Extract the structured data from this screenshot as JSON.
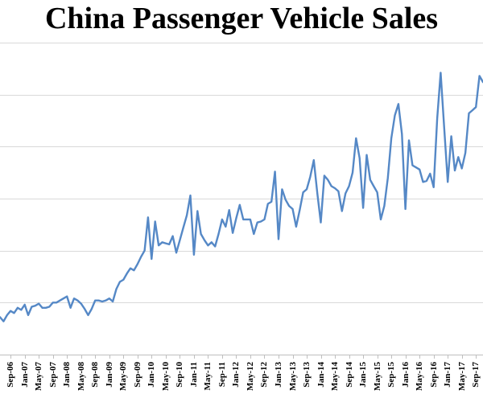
{
  "title": "China Passenger Vehicle Sales",
  "chart_data": {
    "type": "line",
    "title": "China Passenger Vehicle Sales",
    "xlabel": "",
    "ylabel": "",
    "legend": "none",
    "grid": "horizontal",
    "y_axis_labels_visible": false,
    "y_units": "millions of vehicles per month (estimated from unlabeled gridlines; one gridline interval = 0.5)",
    "ylim": [
      0,
      3.0
    ],
    "gridline_interval": 0.5,
    "line_color": "#5588C6",
    "gridline_color": "#D9D9D9",
    "axis_color": "#BFBFBF",
    "x": [
      "Jun-06",
      "Jul-06",
      "Aug-06",
      "Sep-06",
      "Oct-06",
      "Nov-06",
      "Dec-06",
      "Jan-07",
      "Feb-07",
      "Mar-07",
      "Apr-07",
      "May-07",
      "Jun-07",
      "Jul-07",
      "Aug-07",
      "Sep-07",
      "Oct-07",
      "Nov-07",
      "Dec-07",
      "Jan-08",
      "Feb-08",
      "Mar-08",
      "Apr-08",
      "May-08",
      "Jun-08",
      "Jul-08",
      "Aug-08",
      "Sep-08",
      "Oct-08",
      "Nov-08",
      "Dec-08",
      "Jan-09",
      "Feb-09",
      "Mar-09",
      "Apr-09",
      "May-09",
      "Jun-09",
      "Jul-09",
      "Aug-09",
      "Sep-09",
      "Oct-09",
      "Nov-09",
      "Dec-09",
      "Jan-10",
      "Feb-10",
      "Mar-10",
      "Apr-10",
      "May-10",
      "Jun-10",
      "Jul-10",
      "Aug-10",
      "Sep-10",
      "Oct-10",
      "Nov-10",
      "Dec-10",
      "Jan-11",
      "Feb-11",
      "Mar-11",
      "Apr-11",
      "May-11",
      "Jun-11",
      "Jul-11",
      "Aug-11",
      "Sep-11",
      "Oct-11",
      "Nov-11",
      "Dec-11",
      "Jan-12",
      "Feb-12",
      "Mar-12",
      "Apr-12",
      "May-12",
      "Jun-12",
      "Jul-12",
      "Aug-12",
      "Sep-12",
      "Oct-12",
      "Nov-12",
      "Dec-12",
      "Jan-13",
      "Feb-13",
      "Mar-13",
      "Apr-13",
      "May-13",
      "Jun-13",
      "Jul-13",
      "Aug-13",
      "Sep-13",
      "Oct-13",
      "Nov-13",
      "Dec-13",
      "Jan-14",
      "Feb-14",
      "Mar-14",
      "Apr-14",
      "May-14",
      "Jun-14",
      "Jul-14",
      "Aug-14",
      "Sep-14",
      "Oct-14",
      "Nov-14",
      "Dec-14",
      "Jan-15",
      "Feb-15",
      "Mar-15",
      "Apr-15",
      "May-15",
      "Jun-15",
      "Jul-15",
      "Aug-15",
      "Sep-15",
      "Oct-15",
      "Nov-15",
      "Dec-15",
      "Jan-16",
      "Feb-16",
      "Mar-16",
      "Apr-16",
      "May-16",
      "Jun-16",
      "Jul-16",
      "Aug-16",
      "Sep-16",
      "Oct-16",
      "Nov-16",
      "Dec-16",
      "Jan-17",
      "Feb-17",
      "Mar-17",
      "Apr-17",
      "May-17",
      "Jun-17",
      "Jul-17",
      "Aug-17",
      "Sep-17",
      "Oct-17",
      "Nov-17"
    ],
    "values": [
      0.36,
      0.32,
      0.38,
      0.42,
      0.4,
      0.45,
      0.43,
      0.48,
      0.38,
      0.46,
      0.47,
      0.49,
      0.45,
      0.45,
      0.46,
      0.5,
      0.5,
      0.52,
      0.54,
      0.56,
      0.45,
      0.54,
      0.52,
      0.49,
      0.44,
      0.38,
      0.44,
      0.52,
      0.52,
      0.51,
      0.52,
      0.54,
      0.51,
      0.63,
      0.7,
      0.72,
      0.78,
      0.83,
      0.81,
      0.87,
      0.94,
      1.0,
      1.32,
      0.92,
      1.28,
      1.05,
      1.08,
      1.07,
      1.06,
      1.14,
      0.98,
      1.1,
      1.22,
      1.34,
      1.53,
      0.96,
      1.38,
      1.16,
      1.1,
      1.05,
      1.08,
      1.04,
      1.16,
      1.3,
      1.23,
      1.39,
      1.17,
      1.31,
      1.44,
      1.3,
      1.3,
      1.3,
      1.16,
      1.27,
      1.28,
      1.3,
      1.45,
      1.47,
      1.76,
      1.11,
      1.59,
      1.49,
      1.43,
      1.4,
      1.23,
      1.39,
      1.56,
      1.59,
      1.71,
      1.87,
      1.55,
      1.27,
      1.72,
      1.68,
      1.62,
      1.6,
      1.57,
      1.38,
      1.55,
      1.62,
      1.75,
      2.08,
      1.89,
      1.41,
      1.92,
      1.68,
      1.62,
      1.56,
      1.3,
      1.43,
      1.7,
      2.08,
      2.3,
      2.41,
      2.12,
      1.4,
      2.06,
      1.82,
      1.8,
      1.78,
      1.66,
      1.67,
      1.74,
      1.61,
      2.27,
      2.71,
      2.18,
      1.66,
      2.1,
      1.77,
      1.9,
      1.79,
      1.94,
      2.32,
      2.35,
      2.38,
      2.68,
      2.62
    ],
    "x_tick_labels": [
      "Sep-06",
      "Jan-07",
      "May-07",
      "Sep-07",
      "Jan-08",
      "May-08",
      "Sep-08",
      "Jan-09",
      "May-09",
      "Sep-09",
      "Jan-10",
      "May-10",
      "Sep-10",
      "Jan-11",
      "May-11",
      "Sep-11",
      "Jan-12",
      "May-12",
      "Sep-12",
      "Jan-13",
      "May-13",
      "Sep-13",
      "Jan-14",
      "May-14",
      "Sep-14",
      "Jan-15",
      "May-15",
      "Sep-15",
      "Jan-16",
      "May-16",
      "Sep-16",
      "Jan-17",
      "May-17",
      "Sep-17"
    ],
    "x_tick_start_index": 3,
    "x_tick_step": 4
  }
}
